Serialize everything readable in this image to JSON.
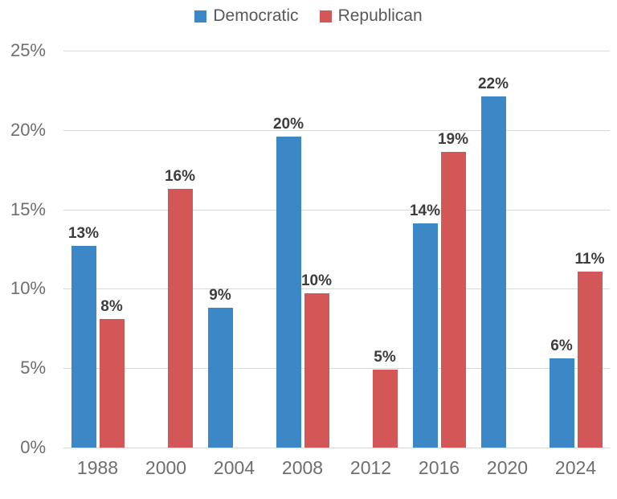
{
  "chart_data": {
    "type": "bar",
    "title": "",
    "categories": [
      "1988",
      "2000",
      "2004",
      "2008",
      "2012",
      "2016",
      "2020",
      "2024"
    ],
    "series": [
      {
        "name": "Democratic",
        "color": "#3c87c5",
        "values": [
          12.7,
          null,
          8.8,
          19.6,
          null,
          14.1,
          22.1,
          5.6
        ],
        "labels": [
          "13%",
          null,
          "9%",
          "20%",
          null,
          "14%",
          "22%",
          "6%"
        ]
      },
      {
        "name": "Republican",
        "color": "#d45757",
        "values": [
          8.1,
          16.3,
          null,
          9.7,
          4.9,
          18.6,
          null,
          11.1
        ],
        "labels": [
          "8%",
          "16%",
          null,
          "10%",
          "5%",
          "19%",
          null,
          "11%"
        ]
      }
    ],
    "y_axis": {
      "min": 0,
      "max": 25,
      "step": 5,
      "ticks": [
        "0%",
        "5%",
        "10%",
        "15%",
        "20%",
        "25%"
      ]
    },
    "xlabel": "",
    "ylabel": "",
    "legend_position": "top",
    "grid": true,
    "colors": {
      "gridline": "#d9d9d9",
      "axis_text": "#6e6e6e",
      "bar_label_text": "#3d3d3d",
      "legend_text": "#595959"
    }
  }
}
